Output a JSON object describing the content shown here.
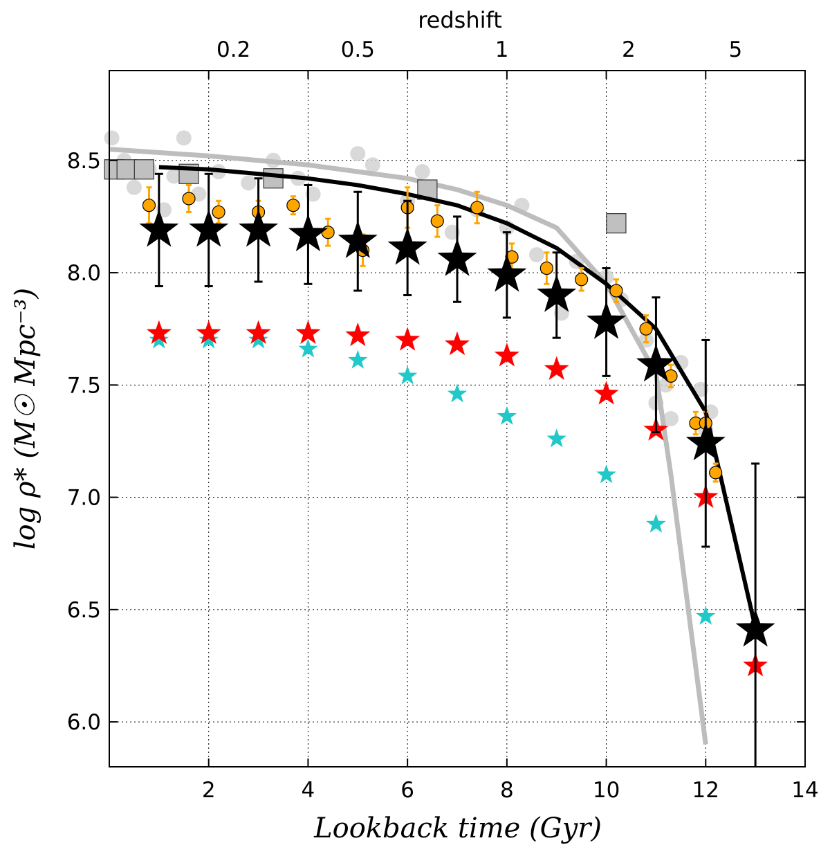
{
  "chart_data": {
    "type": "scatter",
    "xlabel": "Lookback time (Gyr)",
    "ylabel": "log ρ* (M☉ Mpc⁻³)",
    "top_axis_label": "redshift",
    "xlim": [
      0,
      14
    ],
    "ylim": [
      5.8,
      8.9
    ],
    "grid": true,
    "x_ticks": [
      2,
      4,
      6,
      8,
      10,
      12,
      14
    ],
    "y_ticks": [
      6.0,
      6.5,
      7.0,
      7.5,
      8.0,
      8.5
    ],
    "top_ticks": [
      {
        "label": "0.2",
        "x": 2.5
      },
      {
        "label": "0.5",
        "x": 5.0
      },
      {
        "label": "1",
        "x": 7.9
      },
      {
        "label": "2",
        "x": 10.45
      },
      {
        "label": "5",
        "x": 12.6
      }
    ],
    "colors": {
      "black": "#000000",
      "gray": "#c0c0c0",
      "orange": "#ffa500",
      "red": "#ff0000",
      "cyan": "#20c8c8"
    },
    "gray_line": {
      "x": [
        0.0,
        2.0,
        4.0,
        6.0,
        7.0,
        8.0,
        9.0,
        10.0,
        11.0,
        11.3,
        12.0
      ],
      "y": [
        8.55,
        8.52,
        8.48,
        8.42,
        8.37,
        8.3,
        8.2,
        7.95,
        7.55,
        7.1,
        5.9
      ]
    },
    "black_line": {
      "x": [
        1.0,
        2.0,
        3.0,
        4.0,
        5.0,
        6.0,
        7.0,
        8.0,
        9.0,
        10.0,
        11.0,
        12.0,
        13.0
      ],
      "y": [
        8.47,
        8.46,
        8.44,
        8.42,
        8.39,
        8.35,
        8.3,
        8.22,
        8.11,
        7.95,
        7.75,
        7.38,
        6.42
      ]
    },
    "black_stars": {
      "x": [
        1,
        2,
        3,
        4,
        5,
        6,
        7,
        8,
        9,
        10,
        11,
        12,
        13
      ],
      "y": [
        8.19,
        8.19,
        8.19,
        8.17,
        8.14,
        8.11,
        8.06,
        7.99,
        7.9,
        7.78,
        7.59,
        7.24,
        6.41
      ],
      "yerr": [
        0.25,
        0.25,
        0.23,
        0.22,
        0.22,
        0.21,
        0.19,
        0.19,
        0.19,
        0.24,
        0.3,
        0.46,
        0.74
      ]
    },
    "red_stars": {
      "x": [
        1,
        2,
        3,
        4,
        5,
        6,
        7,
        8,
        9,
        10,
        11,
        12,
        13
      ],
      "y": [
        7.73,
        7.73,
        7.73,
        7.73,
        7.72,
        7.7,
        7.68,
        7.63,
        7.57,
        7.46,
        7.3,
        7.0,
        6.25
      ]
    },
    "cyan_stars": {
      "x": [
        1,
        2,
        3,
        4,
        5,
        6,
        7,
        8,
        9,
        10,
        11,
        12
      ],
      "y": [
        7.7,
        7.7,
        7.7,
        7.66,
        7.61,
        7.54,
        7.46,
        7.36,
        7.26,
        7.1,
        6.88,
        6.47
      ]
    },
    "orange_points": {
      "x": [
        0.8,
        1.6,
        2.2,
        3.0,
        3.7,
        4.4,
        5.1,
        6.0,
        6.6,
        7.4,
        8.1,
        8.8,
        9.5,
        10.2,
        10.8,
        11.3,
        11.8,
        12.0,
        12.2
      ],
      "y": [
        8.3,
        8.33,
        8.27,
        8.27,
        8.3,
        8.18,
        8.1,
        8.29,
        8.23,
        8.29,
        8.07,
        8.02,
        7.97,
        7.92,
        7.75,
        7.54,
        7.33,
        7.33,
        7.11
      ],
      "yerr": [
        0.08,
        0.06,
        0.05,
        0.05,
        0.04,
        0.06,
        0.07,
        0.09,
        0.07,
        0.07,
        0.06,
        0.07,
        0.05,
        0.05,
        0.06,
        0.05,
        0.05,
        0.05,
        0.04
      ]
    },
    "gray_squares": {
      "x": [
        0.1,
        0.35,
        0.7,
        1.6,
        3.3,
        6.4,
        10.2
      ],
      "y": [
        8.46,
        8.46,
        8.46,
        8.44,
        8.42,
        8.37,
        8.22
      ]
    },
    "gray_points": {
      "x": [
        0.05,
        0.3,
        0.5,
        0.8,
        1.1,
        1.3,
        1.5,
        1.8,
        2.2,
        2.8,
        3.3,
        3.8,
        4.1,
        5.0,
        5.3,
        6.0,
        6.3,
        6.9,
        7.4,
        8.0,
        8.3,
        8.6,
        9.1,
        9.4,
        10.0,
        10.3,
        10.8,
        11.0,
        11.2,
        11.5,
        11.9,
        12.1,
        11.3,
        12.0
      ],
      "y": [
        8.6,
        8.5,
        8.38,
        8.46,
        8.28,
        8.43,
        8.6,
        8.35,
        8.45,
        8.4,
        8.5,
        8.42,
        8.35,
        8.53,
        8.48,
        8.32,
        8.45,
        8.18,
        8.28,
        8.2,
        8.3,
        8.08,
        7.82,
        8.05,
        7.98,
        7.88,
        7.7,
        7.42,
        7.5,
        7.6,
        7.48,
        7.38,
        7.35,
        7.3
      ]
    }
  }
}
